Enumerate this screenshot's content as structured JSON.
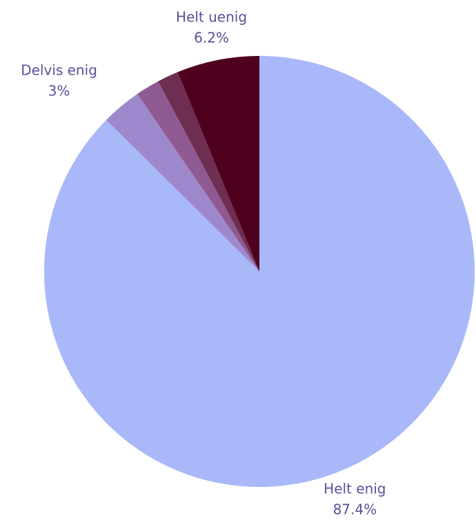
{
  "chart_data": {
    "type": "pie",
    "categories": [
      "Helt enig",
      "Delvis enig",
      null,
      null,
      "Helt uenig"
    ],
    "values": [
      87.4,
      3,
      1.8,
      1.6,
      6.2
    ],
    "value_labels": [
      "87.4%",
      "3%",
      null,
      null,
      "6.2%"
    ],
    "colors": [
      "#a9b8f8",
      "#9e88cc",
      "#8f5a92",
      "#6e2e52",
      "#50001f"
    ]
  }
}
